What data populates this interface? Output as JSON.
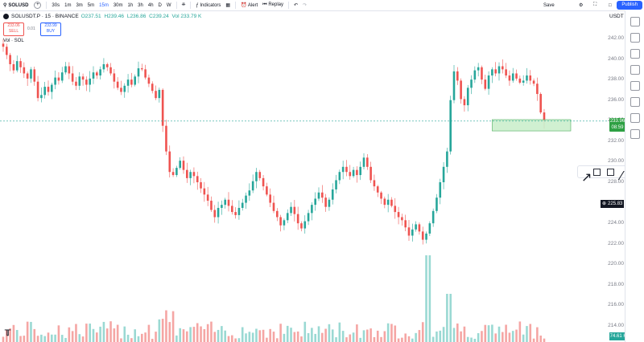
{
  "toolbar": {
    "symbol": "SOLUSD",
    "timeframes": [
      "30s",
      "1m",
      "3m",
      "5m",
      "15m",
      "30m",
      "1h",
      "3h",
      "4h",
      "D",
      "W"
    ],
    "active_timeframe": "15m",
    "indicators_label": "Indicators",
    "alert_label": "Alert",
    "replay_label": "Replay",
    "publish_label": "Publish",
    "profile_label": "Save"
  },
  "legend": {
    "title": "SOLUSDT.P · 15 · BINANCE",
    "o": "O237.51",
    "h": "H239.46",
    "l": "L236.86",
    "c": "C239.24",
    "vol": "Vol 233.79 K",
    "sell_price": "233.06",
    "sell_label": "SELL",
    "spread": "0.01",
    "buy_price": "233.99",
    "buy_label": "BUY"
  },
  "volume_label": "Vol · SOL",
  "axis": {
    "currency": "USDT",
    "ticks": [
      "242.00",
      "240.00",
      "238.00",
      "236.00",
      "234.00",
      "232.00",
      "230.00",
      "228.00",
      "226.00",
      "224.00",
      "222.00",
      "220.00",
      "218.00",
      "216.00",
      "214.00"
    ],
    "current_price": "233.96",
    "countdown": "08:59",
    "crosshair_price": "225.83",
    "volume_value": "74.61 K"
  },
  "colors": {
    "up": "#26a69a",
    "down": "#ef5350",
    "accent": "#2962ff",
    "zone": "#c8eec9"
  },
  "chart_data": {
    "type": "candlestick",
    "title": "SOLUSDT.P · 15 · BINANCE",
    "ylim": [
      213,
      243
    ],
    "current_price": 233.96,
    "closes": [
      241.2,
      240.4,
      239.5,
      238.9,
      239.8,
      239.2,
      238.6,
      238.1,
      239.0,
      237.8,
      236.2,
      236.5,
      237.3,
      236.8,
      237.5,
      238.2,
      237.9,
      238.7,
      239.3,
      238.6,
      237.8,
      237.4,
      238.3,
      238.0,
      237.5,
      238.1,
      238.7,
      238.4,
      239.0,
      239.5,
      239.2,
      238.6,
      237.8,
      237.2,
      236.8,
      237.4,
      238.0,
      237.5,
      238.3,
      239.1,
      239.0,
      238.2,
      237.6,
      236.9,
      236.2,
      237.0,
      233.5,
      231.0,
      229.0,
      228.7,
      229.4,
      230.1,
      229.2,
      228.4,
      229.0,
      228.6,
      228.0,
      227.4,
      226.8,
      226.2,
      225.3,
      224.6,
      225.5,
      225.8,
      226.3,
      225.7,
      225.1,
      224.8,
      225.5,
      226.0,
      226.7,
      227.2,
      228.1,
      229.0,
      228.4,
      227.6,
      226.8,
      226.0,
      225.2,
      224.6,
      223.8,
      224.3,
      225.0,
      225.6,
      224.9,
      224.0,
      223.5,
      224.2,
      225.0,
      225.8,
      226.4,
      227.0,
      226.5,
      225.6,
      226.3,
      227.3,
      228.2,
      229.0,
      229.5,
      229.0,
      228.6,
      229.2,
      228.7,
      229.5,
      230.4,
      229.5,
      228.2,
      227.6,
      227.0,
      226.4,
      225.8,
      226.3,
      225.7,
      225.1,
      224.6,
      224.3,
      223.6,
      222.8,
      223.4,
      223.9,
      223.2,
      222.4,
      223.0,
      224.0,
      225.2,
      226.5,
      228.0,
      229.5,
      231.0,
      236.0,
      238.8,
      237.9,
      236.1,
      235.5,
      237.2,
      238.0,
      238.9,
      239.2,
      238.0,
      237.1,
      238.4,
      239.0,
      238.6,
      239.3,
      239.0,
      238.4,
      237.9,
      238.6,
      238.1,
      237.7,
      237.9,
      238.4,
      237.9,
      237.6,
      236.6,
      234.8,
      233.96
    ],
    "zone": {
      "y_low": 233.0,
      "y_high": 234.1
    },
    "volume_unit": "K"
  }
}
